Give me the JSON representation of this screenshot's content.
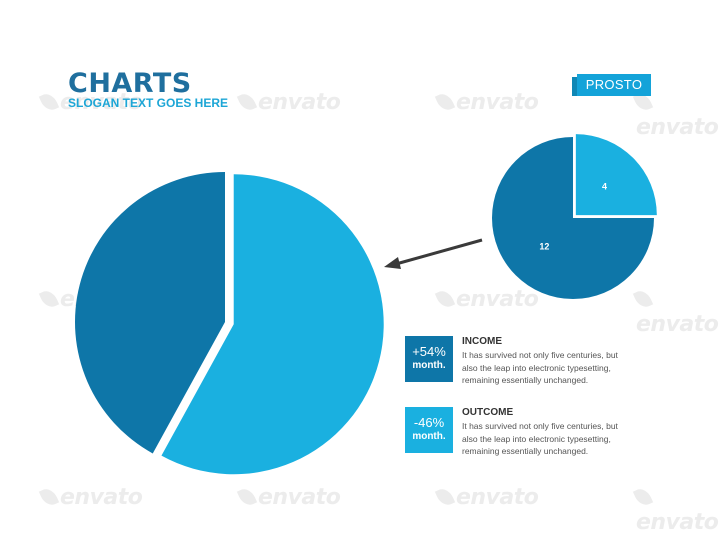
{
  "header": {
    "title": "CHARTS",
    "subtitle": "SLOGAN TEXT GOES HERE",
    "brand_label": "PROSTO"
  },
  "watermark": "envato",
  "colors": {
    "dark_blue": "#0e76a8",
    "light_blue": "#1ab0e0",
    "title_blue": "#1f6f9e",
    "arrow": "#3a3a3a"
  },
  "chart_data": [
    {
      "type": "pie",
      "title": "",
      "slices": [
        {
          "label": "",
          "value": 42,
          "color": "#0e76a8"
        },
        {
          "label": "",
          "value": 58,
          "color": "#1ab0e0",
          "exploded": true
        }
      ]
    },
    {
      "type": "pie",
      "title": "",
      "slices": [
        {
          "label": "4",
          "value": 4,
          "color": "#1ab0e0",
          "exploded": true
        },
        {
          "label": "12",
          "value": 12,
          "color": "#0e76a8"
        }
      ]
    }
  ],
  "legend": [
    {
      "badge_value": "+54%",
      "badge_unit": "month.",
      "title": "INCOME",
      "description": "It has survived not only five centuries, but also the leap into electronic typesetting, remaining essentially unchanged.",
      "color": "#0e76a8"
    },
    {
      "badge_value": "-46%",
      "badge_unit": "month.",
      "title": "OUTCOME",
      "description": "It has survived not only five centuries, but also the leap into electronic typesetting, remaining essentially unchanged.",
      "color": "#1ab0e0"
    }
  ]
}
